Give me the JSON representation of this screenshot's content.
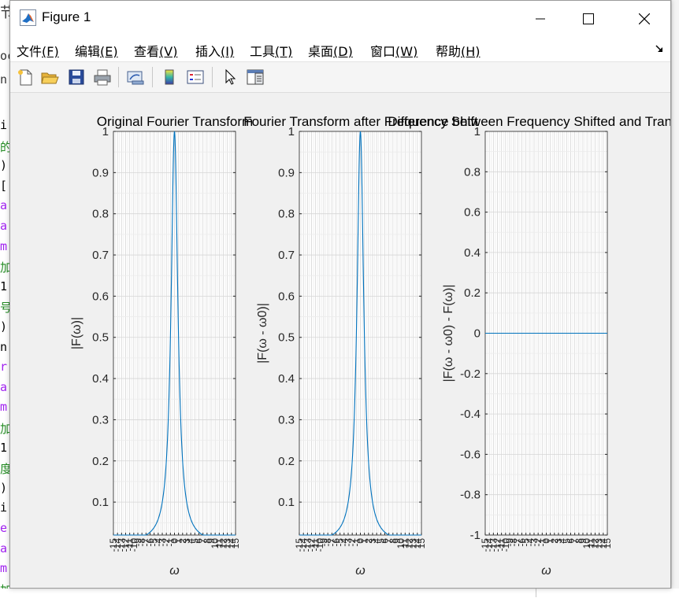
{
  "window": {
    "title": "Figure 1",
    "icon": "matlab-logo-icon",
    "controls": [
      "minimize-icon",
      "maximize-icon",
      "close-icon"
    ]
  },
  "menu": {
    "items": [
      {
        "label": "文件",
        "key": "(F)"
      },
      {
        "label": "编辑",
        "key": "(E)"
      },
      {
        "label": "查看",
        "key": "(V)"
      },
      {
        "label": "插入",
        "key": "(I)"
      },
      {
        "label": "工具",
        "key": "(T)"
      },
      {
        "label": "桌面",
        "key": "(D)"
      },
      {
        "label": "窗口",
        "key": "(W)"
      },
      {
        "label": "帮助",
        "key": "(H)"
      }
    ]
  },
  "toolbar": {
    "buttons": [
      "new-figure-icon",
      "open-file-icon",
      "save-icon",
      "print-icon",
      "link-plot-icon",
      "colorbar-icon",
      "legend-icon",
      "select-arrow-icon",
      "property-editor-icon"
    ]
  },
  "background_editor": {
    "lines": [
      {
        "text": "i",
        "color": "#000000"
      },
      {
        "text": "的",
        "color": "#228B22"
      },
      {
        "text": ")",
        "color": "#000000"
      },
      {
        "text": "[",
        "color": "#000000"
      },
      {
        "text": "a",
        "color": "#A020F0"
      },
      {
        "text": "a",
        "color": "#A020F0"
      },
      {
        "text": "m",
        "color": "#A020F0"
      },
      {
        "text": "加",
        "color": "#228B22"
      },
      {
        "text": "1",
        "color": "#000000"
      },
      {
        "text": "号",
        "color": "#228B22"
      },
      {
        "text": ")",
        "color": "#000000"
      },
      {
        "text": "n",
        "color": "#000000"
      },
      {
        "text": "r",
        "color": "#A020F0"
      },
      {
        "text": "a",
        "color": "#A020F0"
      },
      {
        "text": "m",
        "color": "#A020F0"
      },
      {
        "text": "加",
        "color": "#228B22"
      },
      {
        "text": "1",
        "color": "#000000"
      },
      {
        "text": "度",
        "color": "#228B22"
      },
      {
        "text": ")",
        "color": "#000000"
      },
      {
        "text": "i",
        "color": "#000000"
      },
      {
        "text": "e",
        "color": "#A020F0"
      },
      {
        "text": "a",
        "color": "#A020F0"
      },
      {
        "text": "m",
        "color": "#A020F0"
      },
      {
        "text": "加网格",
        "color": "#228B22"
      }
    ],
    "top_text": "节",
    "side_texts": [
      "oc",
      "n"
    ]
  },
  "chart_data": [
    {
      "type": "line",
      "title": "Original Fourier Transform",
      "xlabel": "ω",
      "ylabel": "|F(ω)|",
      "xlim": [
        -15,
        15
      ],
      "ylim": [
        0.02,
        1
      ],
      "grid": true,
      "yticks": [
        0.1,
        0.2,
        0.3,
        0.4,
        0.5,
        0.6,
        0.7,
        0.8,
        0.9,
        1
      ],
      "ytick_labels": [
        "0.1",
        "0.2",
        "0.3",
        "0.4",
        "0.5",
        "0.6",
        "0.7",
        "0.8",
        "0.9",
        "1"
      ],
      "xtick_labels": [
        "-15",
        "-14",
        "-13",
        "-12",
        "-11",
        "-10",
        "-9",
        "-8",
        "-7",
        "-6",
        "-5",
        "-4",
        "-3",
        "-2",
        "-1",
        "0",
        "1",
        "2",
        "3",
        "4",
        "5",
        "6",
        "7",
        "8",
        "9",
        "10",
        "11",
        "12",
        "13",
        "14",
        "15"
      ],
      "series": [
        {
          "color": "#0072BD",
          "function": "1/(1+w^2)",
          "x": [
            -15,
            -10,
            -6,
            -4,
            -3,
            -2,
            -1,
            -0.5,
            0,
            0.5,
            1,
            2,
            3,
            4,
            6,
            10,
            15
          ],
          "y": [
            0.0044,
            0.0099,
            0.027,
            0.059,
            0.1,
            0.2,
            0.5,
            0.8,
            1,
            0.8,
            0.5,
            0.2,
            0.1,
            0.059,
            0.027,
            0.0099,
            0.0044
          ]
        }
      ]
    },
    {
      "type": "line",
      "title": "Fourier Transform after Frequency Shift",
      "xlabel": "ω",
      "ylabel": "|F(ω - ω0)|",
      "xlim": [
        -15,
        15
      ],
      "ylim": [
        0.02,
        1
      ],
      "grid": true,
      "yticks": [
        0.1,
        0.2,
        0.3,
        0.4,
        0.5,
        0.6,
        0.7,
        0.8,
        0.9,
        1
      ],
      "ytick_labels": [
        "0.1",
        "0.2",
        "0.3",
        "0.4",
        "0.5",
        "0.6",
        "0.7",
        "0.8",
        "0.9",
        "1"
      ],
      "xtick_labels": [
        "-15",
        "-14",
        "-13",
        "-12",
        "-11",
        "-10",
        "-9",
        "-8",
        "-7",
        "-6",
        "-5",
        "-4",
        "-3",
        "-2",
        "-1",
        "0",
        "1",
        "2",
        "3",
        "4",
        "5",
        "6",
        "7",
        "8",
        "9",
        "10",
        "11",
        "12",
        "13",
        "14",
        "15"
      ],
      "series": [
        {
          "color": "#0072BD",
          "function": "1/(1+w^2)",
          "x": [
            -15,
            -10,
            -6,
            -4,
            -3,
            -2,
            -1,
            -0.5,
            0,
            0.5,
            1,
            2,
            3,
            4,
            6,
            10,
            15
          ],
          "y": [
            0.0044,
            0.0099,
            0.027,
            0.059,
            0.1,
            0.2,
            0.5,
            0.8,
            1,
            0.8,
            0.5,
            0.2,
            0.1,
            0.059,
            0.027,
            0.0099,
            0.0044
          ]
        }
      ]
    },
    {
      "type": "line",
      "title": "Difference between Frequency Shifted and Transform",
      "xlabel": "ω",
      "ylabel": "|F(ω - ω0) - F(ω)|",
      "xlim": [
        -15,
        15
      ],
      "ylim": [
        -1,
        1
      ],
      "grid": true,
      "yticks": [
        -1,
        -0.8,
        -0.6,
        -0.4,
        -0.2,
        0,
        0.2,
        0.4,
        0.6,
        0.8,
        1
      ],
      "ytick_labels": [
        "-1",
        "-0.8",
        "-0.6",
        "-0.4",
        "-0.2",
        "0",
        "0.2",
        "0.4",
        "0.6",
        "0.8",
        "1"
      ],
      "xtick_labels": [
        "-15",
        "-14",
        "-13",
        "-12",
        "-11",
        "-10",
        "-9",
        "-8",
        "-7",
        "-6",
        "-5",
        "-4",
        "-3",
        "-2",
        "-1",
        "0",
        "1",
        "2",
        "3",
        "4",
        "5",
        "6",
        "7",
        "8",
        "9",
        "10",
        "11",
        "12",
        "13",
        "14",
        "15"
      ],
      "series": [
        {
          "color": "#0072BD",
          "function": "0",
          "x": [
            -15,
            15
          ],
          "y": [
            0,
            0
          ]
        }
      ]
    }
  ]
}
